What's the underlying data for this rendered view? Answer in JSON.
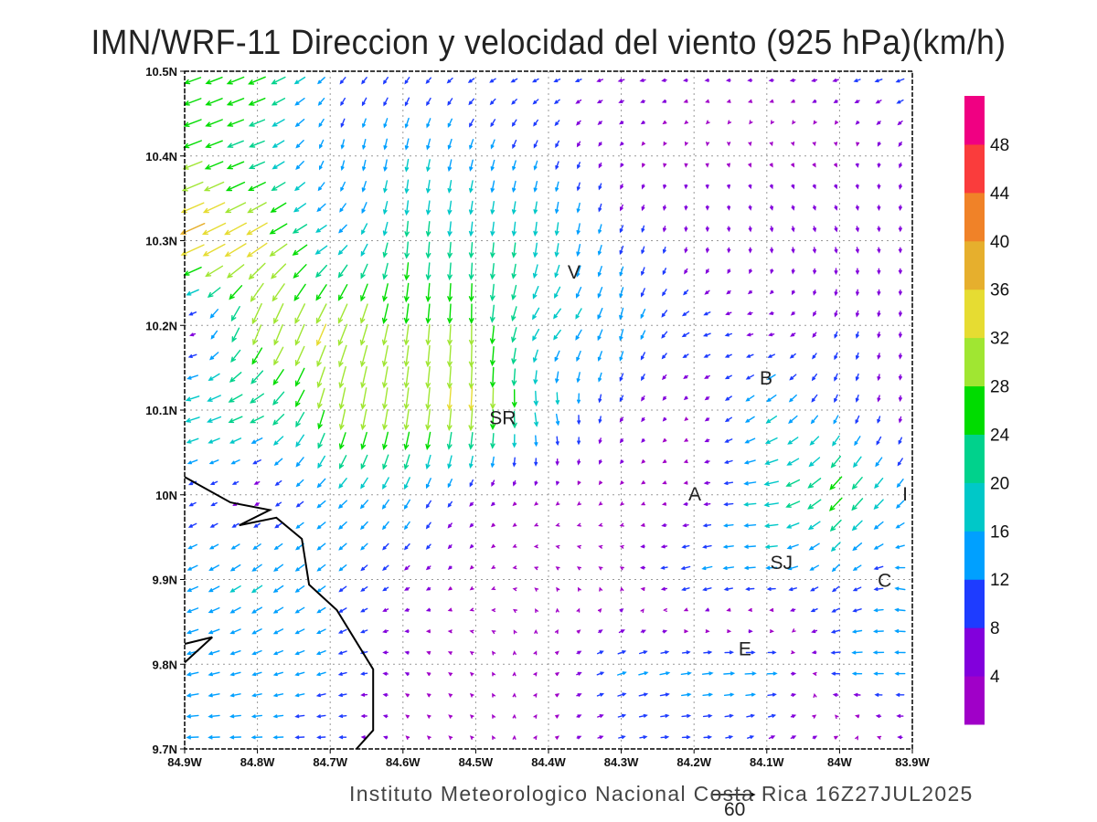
{
  "title": "IMN/WRF-11 Direccion y velocidad del viento (925 hPa)(km/h)",
  "footer": "Instituto Meteorologico Nacional Costa Rica  16Z27JUL2025",
  "reference_vector": {
    "value": 60,
    "label": "60"
  },
  "chart_data": {
    "type": "vector-field",
    "units": "km/h",
    "level": "925 hPa",
    "xlim": [
      -84.9,
      -83.9
    ],
    "ylim": [
      9.7,
      10.5
    ],
    "x_ticks": [
      {
        "v": -84.9,
        "label": "84.9W"
      },
      {
        "v": -84.8,
        "label": "84.8W"
      },
      {
        "v": -84.7,
        "label": "84.7W"
      },
      {
        "v": -84.6,
        "label": "84.6W"
      },
      {
        "v": -84.5,
        "label": "84.5W"
      },
      {
        "v": -84.4,
        "label": "84.4W"
      },
      {
        "v": -84.3,
        "label": "84.3W"
      },
      {
        "v": -84.2,
        "label": "84.2W"
      },
      {
        "v": -84.1,
        "label": "84.1W"
      },
      {
        "v": -84.0,
        "label": "84W"
      },
      {
        "v": -83.9,
        "label": "83.9W"
      }
    ],
    "y_ticks": [
      {
        "v": 10.5,
        "label": "10.5N"
      },
      {
        "v": 10.4,
        "label": "10.4N"
      },
      {
        "v": 10.3,
        "label": "10.3N"
      },
      {
        "v": 10.2,
        "label": "10.2N"
      },
      {
        "v": 10.1,
        "label": "10.1N"
      },
      {
        "v": 10.0,
        "label": "10N"
      },
      {
        "v": 9.9,
        "label": "9.9N"
      },
      {
        "v": 9.8,
        "label": "9.8N"
      },
      {
        "v": 9.7,
        "label": "9.7N"
      }
    ],
    "grid": true,
    "coarse_wind": {
      "lons": [
        -84.9,
        -84.8,
        -84.7,
        -84.6,
        -84.5,
        -84.4,
        -84.3,
        -84.2,
        -84.1,
        -84.0,
        -83.9
      ],
      "lats": [
        10.5,
        10.4,
        10.3,
        10.2,
        10.1,
        10.0,
        9.9,
        9.8,
        9.7
      ],
      "uv": [
        [
          [
            -22,
            -8
          ],
          [
            -24,
            -10
          ],
          [
            -8,
            -8
          ],
          [
            -6,
            -8
          ],
          [
            -8,
            -4
          ],
          [
            -8,
            -3
          ],
          [
            -8,
            -2
          ],
          [
            -5,
            0
          ],
          [
            -6,
            0
          ],
          [
            -8,
            -2
          ],
          [
            -12,
            -4
          ]
        ],
        [
          [
            -26,
            -10
          ],
          [
            -20,
            -8
          ],
          [
            -2,
            -12
          ],
          [
            -3,
            -16
          ],
          [
            -4,
            -14
          ],
          [
            -4,
            -10
          ],
          [
            -2,
            -3
          ],
          [
            0,
            -3
          ],
          [
            2,
            -3
          ],
          [
            2,
            -3
          ],
          [
            -3,
            -6
          ]
        ],
        [
          [
            -36,
            -16
          ],
          [
            -30,
            -18
          ],
          [
            -14,
            -8
          ],
          [
            -2,
            -22
          ],
          [
            -2,
            -20
          ],
          [
            -2,
            -20
          ],
          [
            -4,
            -10
          ],
          [
            0,
            -6
          ],
          [
            1,
            -7
          ],
          [
            2,
            -7
          ],
          [
            0,
            -6
          ]
        ],
        [
          [
            -4,
            2
          ],
          [
            -10,
            -30
          ],
          [
            -14,
            -30
          ],
          [
            -4,
            -28
          ],
          [
            0,
            -28
          ],
          [
            -12,
            -12
          ],
          [
            -4,
            -16
          ],
          [
            -10,
            -4
          ],
          [
            -6,
            0
          ],
          [
            -3,
            -8
          ],
          [
            0,
            -6
          ]
        ],
        [
          [
            -20,
            -6
          ],
          [
            -20,
            -10
          ],
          [
            -6,
            -30
          ],
          [
            -4,
            -30
          ],
          [
            -2,
            -34
          ],
          [
            4,
            -18
          ],
          [
            -4,
            -6
          ],
          [
            -2,
            -2
          ],
          [
            -14,
            -10
          ],
          [
            -4,
            -10
          ],
          [
            0,
            -6
          ]
        ],
        [
          [
            -8,
            -4
          ],
          [
            -4,
            -2
          ],
          [
            -12,
            -10
          ],
          [
            -8,
            -14
          ],
          [
            -4,
            -4
          ],
          [
            -2,
            -2
          ],
          [
            -2,
            -2
          ],
          [
            -4,
            0
          ],
          [
            -20,
            -2
          ],
          [
            -18,
            -20
          ],
          [
            -8,
            -10
          ]
        ],
        [
          [
            -14,
            -6
          ],
          [
            -14,
            -10
          ],
          [
            -10,
            -8
          ],
          [
            -6,
            -4
          ],
          [
            -2,
            -2
          ],
          [
            -2,
            2
          ],
          [
            -2,
            2
          ],
          [
            -14,
            -4
          ],
          [
            -14,
            0
          ],
          [
            -8,
            -8
          ],
          [
            -14,
            4
          ]
        ],
        [
          [
            -16,
            -4
          ],
          [
            -12,
            -4
          ],
          [
            -12,
            -4
          ],
          [
            -4,
            2
          ],
          [
            -2,
            2
          ],
          [
            2,
            2
          ],
          [
            12,
            4
          ],
          [
            14,
            2
          ],
          [
            16,
            0
          ],
          [
            -14,
            0
          ],
          [
            -14,
            0
          ]
        ],
        [
          [
            -16,
            0
          ],
          [
            -14,
            0
          ],
          [
            -10,
            0
          ],
          [
            -2,
            2
          ],
          [
            -2,
            2
          ],
          [
            2,
            2
          ],
          [
            8,
            2
          ],
          [
            10,
            0
          ],
          [
            6,
            4
          ],
          [
            6,
            2
          ],
          [
            -6,
            0
          ]
        ]
      ]
    },
    "colorbar": {
      "labels": [
        "4",
        "8",
        "12",
        "16",
        "20",
        "24",
        "28",
        "32",
        "36",
        "40",
        "44",
        "48"
      ],
      "thresholds": [
        4,
        8,
        12,
        16,
        20,
        24,
        28,
        32,
        36,
        40,
        44,
        48
      ],
      "colors": [
        "#a000c8",
        "#8200dc",
        "#1e3cff",
        "#00a0ff",
        "#00c8c8",
        "#00d28c",
        "#00dc00",
        "#a0e632",
        "#e6dc32",
        "#e6af2d",
        "#f08228",
        "#fa3c3c",
        "#f00082"
      ]
    },
    "coastline": [
      [
        [
          -84.9,
          10.021
        ],
        [
          -84.837,
          9.991
        ],
        [
          -84.783,
          9.982
        ],
        [
          -84.825,
          9.964
        ],
        [
          -84.774,
          9.973
        ],
        [
          -84.739,
          9.948
        ],
        [
          -84.729,
          9.894
        ],
        [
          -84.691,
          9.864
        ],
        [
          -84.641,
          9.794
        ],
        [
          -84.641,
          9.722
        ],
        [
          -84.664,
          9.7
        ]
      ],
      [
        [
          -84.9,
          9.824
        ],
        [
          -84.862,
          9.832
        ],
        [
          -84.9,
          9.802
        ]
      ]
    ],
    "cities": [
      {
        "label": "V",
        "lon": -84.365,
        "lat": 10.264
      },
      {
        "label": "SR",
        "lon": -84.463,
        "lat": 10.092
      },
      {
        "label": "B",
        "lon": -84.101,
        "lat": 10.139
      },
      {
        "label": "A",
        "lon": -84.199,
        "lat": 10.002
      },
      {
        "label": "I",
        "lon": -83.91,
        "lat": 10.002
      },
      {
        "label": "SJ",
        "lon": -84.08,
        "lat": 9.921
      },
      {
        "label": "C",
        "lon": -83.938,
        "lat": 9.9
      },
      {
        "label": "E",
        "lon": -84.13,
        "lat": 9.819
      }
    ]
  }
}
